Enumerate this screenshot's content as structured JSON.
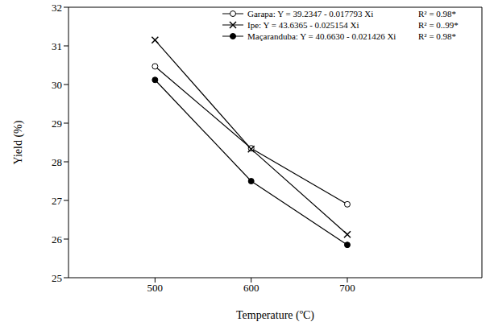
{
  "chart_data": {
    "type": "line",
    "x_label": "Temperature (ºC)",
    "y_label": "Yield (%)",
    "x": [
      500,
      600,
      700
    ],
    "xlim": [
      410,
      840
    ],
    "xticks": [
      500,
      600,
      700
    ],
    "ylim": [
      25,
      32
    ],
    "yticks": [
      25,
      26,
      27,
      28,
      29,
      30,
      31,
      32
    ],
    "grid": false,
    "legend": "top",
    "series": [
      {
        "name": "Garapa: Y = 39.2347 - 0.017793 Xi",
        "annotation": "R² = 0.98*",
        "color": "#000000",
        "marker": "circle_open",
        "line_style": "solid",
        "values": [
          30.47,
          28.35,
          26.9
        ]
      },
      {
        "name": "Ipe: Y = 43.6365 - 0.025154 Xi",
        "annotation": "R² = 0..99*",
        "color": "#000000",
        "marker": "x",
        "line_style": "solid",
        "values": [
          31.15,
          28.33,
          26.12
        ]
      },
      {
        "name": "Maçaranduba: Y = 40.6630 - 0.021426 Xi",
        "annotation": "R² = 0.98*",
        "color": "#000000",
        "marker": "circle",
        "line_style": "solid",
        "values": [
          30.12,
          27.5,
          25.85
        ]
      }
    ]
  }
}
